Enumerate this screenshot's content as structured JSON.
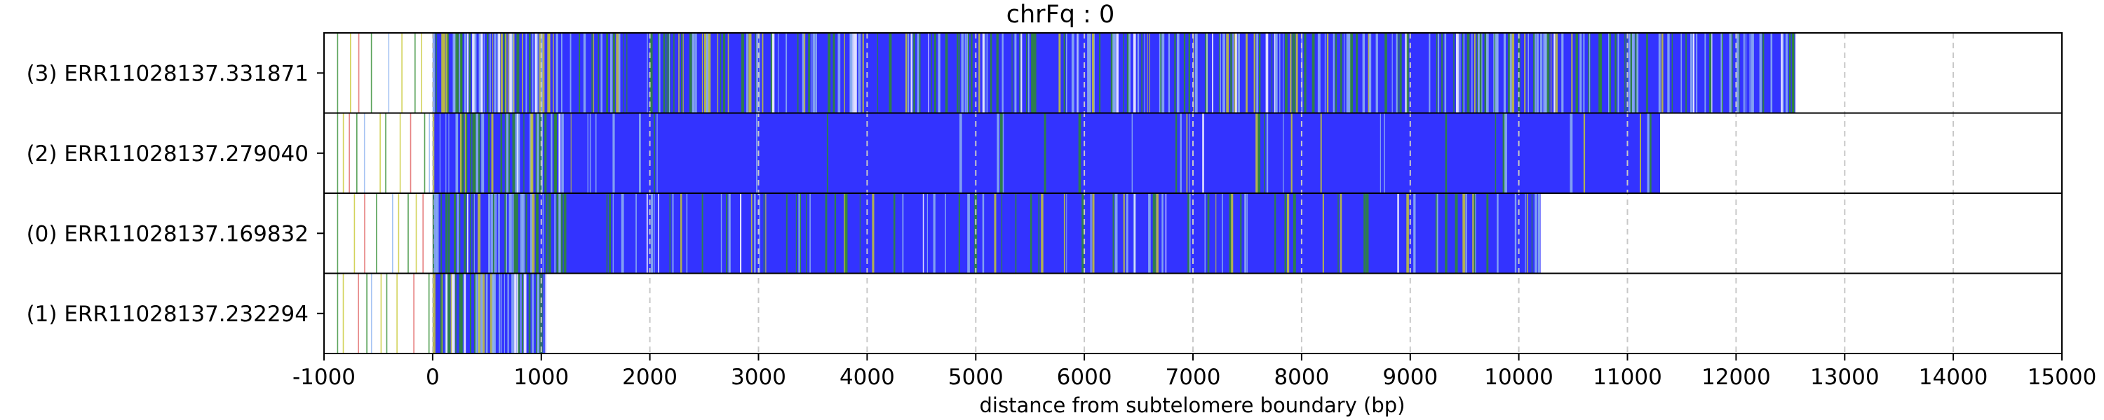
{
  "chart_data": {
    "type": "track",
    "title": "chrFq : 0",
    "xlabel": "distance from subtelomere boundary (bp)",
    "xlim": [
      -1000,
      15000
    ],
    "xticks": [
      -1000,
      0,
      1000,
      2000,
      3000,
      4000,
      5000,
      6000,
      7000,
      8000,
      9000,
      10000,
      11000,
      12000,
      13000,
      14000,
      15000
    ],
    "grid": "vertical dashed",
    "colors": {
      "main": "#3333ff",
      "green": "#2e8b2e",
      "yellow": "#c8c832",
      "red": "#e06060",
      "light_blue": "#8fb4f0",
      "frame": "#000000",
      "grid": "#c8c8c8"
    },
    "tracks": [
      {
        "label": "(3) ERR11028137.331871",
        "start": 0,
        "end": 12550,
        "variability": "high"
      },
      {
        "label": "(2) ERR11028137.279040",
        "start": 0,
        "end": 11300,
        "variability": "low"
      },
      {
        "label": "(0) ERR11028137.169832",
        "start": 0,
        "end": 10200,
        "variability": "medium"
      },
      {
        "label": "(1) ERR11028137.232294",
        "start": 0,
        "end": 1050,
        "variability": "low"
      }
    ]
  }
}
